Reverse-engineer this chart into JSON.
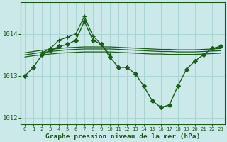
{
  "title": "Graphe pression niveau de la mer (hPa)",
  "background_color": "#cce9e9",
  "grid_color": "#aad4d4",
  "line_color": "#1a5c1a",
  "xlim": [
    -0.5,
    23.5
  ],
  "ylim": [
    1011.85,
    1014.75
  ],
  "yticks": [
    1012,
    1013,
    1014
  ],
  "xticks": [
    0,
    1,
    2,
    3,
    4,
    5,
    6,
    7,
    8,
    9,
    10,
    11,
    12,
    13,
    14,
    15,
    16,
    17,
    18,
    19,
    20,
    21,
    22,
    23
  ],
  "series": [
    {
      "x": [
        0,
        1,
        2,
        3,
        4,
        5,
        6,
        7,
        8,
        9,
        10,
        11,
        12,
        13,
        14,
        15,
        16,
        17,
        18,
        19,
        20,
        21,
        22,
        23
      ],
      "y": [
        1013.0,
        1013.2,
        1013.5,
        1013.6,
        1013.7,
        1013.75,
        1013.85,
        1014.3,
        1013.85,
        1013.75,
        1013.45,
        1013.2,
        1013.2,
        1013.05,
        1012.75,
        1012.4,
        1012.25,
        1012.3,
        1012.75,
        1013.15,
        1013.35,
        1013.5,
        1013.65,
        1013.7
      ],
      "marker": "D",
      "markersize": 3.0,
      "linewidth": 1.0
    },
    {
      "x": [
        0,
        1,
        2,
        3,
        4,
        5,
        6,
        7,
        8,
        9,
        10,
        11,
        12,
        13,
        14,
        15,
        16,
        17,
        18,
        19,
        20,
        21,
        22,
        23
      ],
      "y": [
        1013.55,
        1013.58,
        1013.61,
        1013.63,
        1013.65,
        1013.67,
        1013.68,
        1013.69,
        1013.69,
        1013.69,
        1013.69,
        1013.68,
        1013.67,
        1013.66,
        1013.65,
        1013.64,
        1013.63,
        1013.63,
        1013.62,
        1013.62,
        1013.62,
        1013.63,
        1013.64,
        1013.65
      ],
      "marker": null,
      "linewidth": 0.9
    },
    {
      "x": [
        0,
        1,
        2,
        3,
        4,
        5,
        6,
        7,
        8,
        9,
        10,
        11,
        12,
        13,
        14,
        15,
        16,
        17,
        18,
        19,
        20,
        21,
        22,
        23
      ],
      "y": [
        1013.5,
        1013.53,
        1013.56,
        1013.58,
        1013.6,
        1013.62,
        1013.63,
        1013.64,
        1013.64,
        1013.64,
        1013.64,
        1013.63,
        1013.62,
        1013.61,
        1013.6,
        1013.59,
        1013.58,
        1013.58,
        1013.57,
        1013.57,
        1013.57,
        1013.58,
        1013.59,
        1013.6
      ],
      "marker": null,
      "linewidth": 0.9
    },
    {
      "x": [
        0,
        1,
        2,
        3,
        4,
        5,
        6,
        7,
        8,
        9,
        10,
        11,
        12,
        13,
        14,
        15,
        16,
        17,
        18,
        19,
        20,
        21,
        22,
        23
      ],
      "y": [
        1013.45,
        1013.48,
        1013.5,
        1013.52,
        1013.54,
        1013.55,
        1013.56,
        1013.57,
        1013.57,
        1013.57,
        1013.57,
        1013.56,
        1013.55,
        1013.54,
        1013.53,
        1013.52,
        1013.52,
        1013.51,
        1013.51,
        1013.51,
        1013.51,
        1013.52,
        1013.53,
        1013.54
      ],
      "marker": null,
      "linewidth": 0.9
    },
    {
      "x": [
        2,
        3,
        4,
        5,
        6,
        7,
        8,
        9,
        10
      ],
      "y": [
        1013.55,
        1013.65,
        1013.85,
        1013.92,
        1014.0,
        1014.42,
        1013.95,
        1013.75,
        1013.5
      ],
      "marker": "+",
      "markersize": 4.0,
      "linewidth": 0.9
    }
  ]
}
